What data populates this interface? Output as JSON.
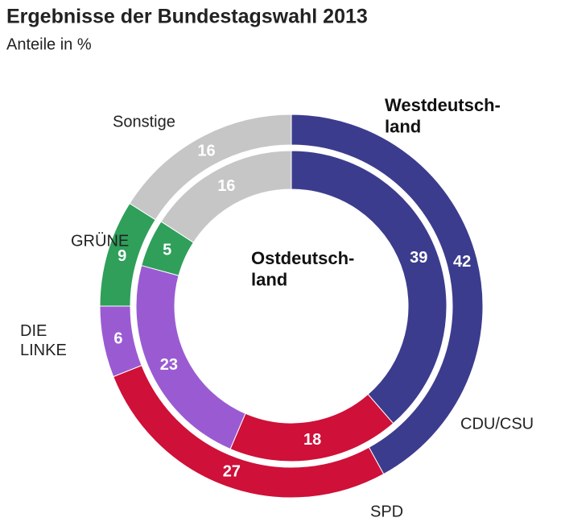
{
  "chart_data": {
    "type": "donut",
    "title": "Ergebnisse der Bundestagswahl 2013",
    "subtitle": "Anteile in %",
    "categories": [
      "CDU/CSU",
      "SPD",
      "DIE\nLINKE",
      "GRÜNE",
      "Sonstige"
    ],
    "colors": [
      "#3c3c8e",
      "#cf1039",
      "#9a5bd2",
      "#2f9f5a",
      "#c6c6c6"
    ],
    "series": [
      {
        "name": "Westdeutsch-\nland",
        "values": [
          42,
          27,
          6,
          9,
          16
        ]
      },
      {
        "name": "Ostdeutsch-\nland",
        "values": [
          39,
          18,
          23,
          5,
          16
        ]
      }
    ]
  }
}
